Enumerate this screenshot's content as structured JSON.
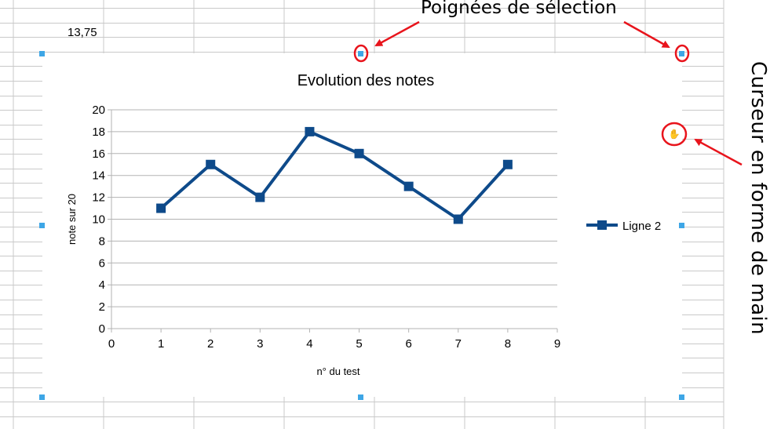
{
  "spreadsheet": {
    "cell_value": "13,75"
  },
  "chart_data": {
    "type": "line",
    "title": "Evolution des notes",
    "xlabel": "n° du test",
    "ylabel": "note sur 20",
    "x": [
      1,
      2,
      3,
      4,
      5,
      6,
      7,
      8
    ],
    "series": [
      {
        "name": "Ligne 2",
        "values": [
          11,
          15,
          12,
          18,
          16,
          13,
          10,
          15
        ],
        "color": "#0e4a8a"
      }
    ],
    "xlim": [
      0,
      9
    ],
    "ylim": [
      0,
      20
    ],
    "xticks": [
      "0",
      "1",
      "2",
      "3",
      "4",
      "5",
      "6",
      "7",
      "8",
      "9"
    ],
    "yticks": [
      "0",
      "2",
      "4",
      "6",
      "8",
      "10",
      "12",
      "14",
      "16",
      "18",
      "20"
    ],
    "grid": true,
    "legend": "right",
    "marker": "square"
  },
  "annotations": {
    "handles_label": "Poignées de sélection",
    "cursor_label": "Curseur en forme de main",
    "arrow_color": "#e8141c",
    "circle_color": "#e8141c",
    "handle_color": "#3ea6e6"
  }
}
